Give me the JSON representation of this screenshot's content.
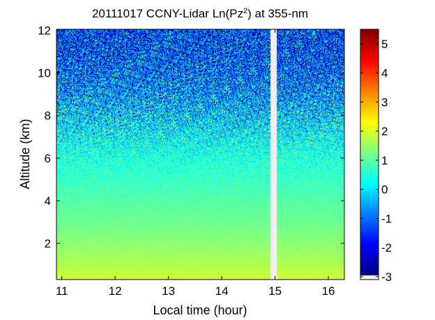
{
  "chart_data": {
    "type": "heatmap",
    "title_main": "20111017 CCNY-Lidar Ln(Pz",
    "title_sup": "2",
    "title_end": ") at 355-nm",
    "xlabel": "Local time (hour)",
    "ylabel": "Altitude (km)",
    "xlim": [
      10.9,
      16.3
    ],
    "ylim": [
      0.3,
      12.05
    ],
    "x_ticks": [
      11,
      12,
      13,
      14,
      15,
      16
    ],
    "x_tick_labels": [
      "11",
      "12",
      "13",
      "14",
      "15",
      "16"
    ],
    "y_ticks": [
      2,
      4,
      6,
      8,
      10,
      12
    ],
    "y_tick_labels": [
      "2",
      "4",
      "6",
      "8",
      "10",
      "12"
    ],
    "data_gap_hours": [
      14.92,
      15.02
    ],
    "colorbar": {
      "colormap": "jet",
      "clim": [
        -3.1,
        5.5
      ],
      "ticks": [
        -3,
        -2,
        -1,
        0,
        1,
        2,
        3,
        4,
        5
      ],
      "tick_labels": [
        "-3",
        "-2",
        "-1",
        "0",
        "1",
        "2",
        "3",
        "4",
        "5"
      ],
      "no_data_color": "#f0f0f0"
    },
    "altitude_profile": {
      "altitude_km": [
        0.3,
        1,
        2,
        3,
        4,
        5,
        6,
        7,
        8,
        9,
        10,
        11,
        12
      ],
      "mean_value": [
        1.85,
        1.6,
        1.3,
        1.05,
        0.85,
        0.6,
        0.4,
        0.1,
        -0.3,
        -0.8,
        -1.2,
        -1.5,
        -1.6
      ],
      "noise_std": [
        0.03,
        0.05,
        0.08,
        0.12,
        0.15,
        0.25,
        0.45,
        0.8,
        1.1,
        1.3,
        1.4,
        1.5,
        1.5
      ]
    },
    "grid": false,
    "legend": "none"
  }
}
